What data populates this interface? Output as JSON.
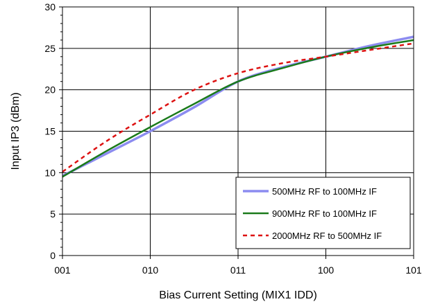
{
  "chart_data": {
    "type": "line",
    "xlabel": "Bias Current Setting (MIX1 IDD)",
    "ylabel": "Input IP3 (dBm)",
    "categories": [
      "001",
      "010",
      "011",
      "100",
      "101"
    ],
    "xlim": [
      0,
      4
    ],
    "ylim": [
      0,
      30
    ],
    "yticks": [
      0,
      5,
      10,
      15,
      20,
      25,
      30
    ],
    "grid": true,
    "legend_position": "bottom-right",
    "series": [
      {
        "name": "500MHz RF to 100MHz IF",
        "color": "#8c8cf0",
        "style": "solid",
        "x": [
          0,
          0.5,
          1,
          1.5,
          2,
          2.5,
          3,
          3.5,
          4
        ],
        "y": [
          9.6,
          12.3,
          15.0,
          17.9,
          21.0,
          22.7,
          24.0,
          25.3,
          26.4
        ]
      },
      {
        "name": "900MHz RF to 100MHz IF",
        "color": "#1a7a1a",
        "style": "solid",
        "x": [
          0,
          0.5,
          1,
          1.5,
          2,
          2.5,
          3,
          3.5,
          4
        ],
        "y": [
          9.5,
          12.6,
          15.5,
          18.3,
          21.0,
          22.6,
          24.0,
          25.1,
          26.0
        ]
      },
      {
        "name": "2000MHz RF to 500MHz IF",
        "color": "#dd1111",
        "style": "dashed",
        "x": [
          0,
          0.5,
          1,
          1.5,
          2,
          2.5,
          3,
          3.5,
          4
        ],
        "y": [
          10.1,
          13.8,
          17.0,
          20.0,
          22.0,
          23.2,
          24.0,
          24.8,
          25.6
        ]
      }
    ]
  }
}
